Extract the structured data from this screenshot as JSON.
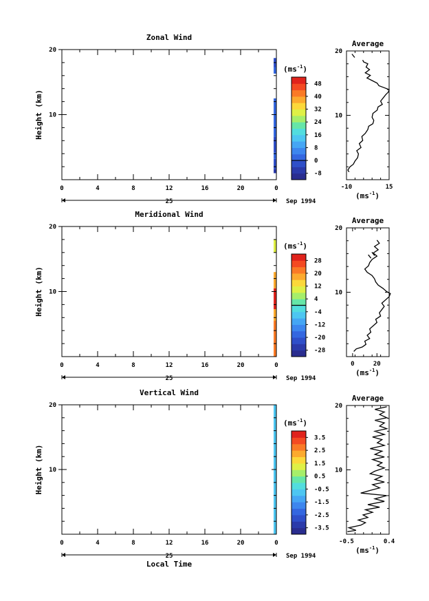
{
  "chart_data": [
    {
      "type": "heatmap",
      "title": "Zonal Wind",
      "ylabel": "Height (km)",
      "ylim": [
        0,
        20
      ],
      "yticks": [
        10,
        20
      ],
      "xlim": [
        0,
        24
      ],
      "xticks": [
        "0",
        "4",
        "8",
        "12",
        "16",
        "20",
        "0"
      ],
      "date_day": "25",
      "date_label": "Sep 1994",
      "colorbar": {
        "unit": "(ms",
        "unit_sup": "-1",
        "unit_close": ")",
        "tick_labels": [
          "-8",
          "0",
          "8",
          "16",
          "24",
          "32",
          "40",
          "48"
        ],
        "range": [
          -12,
          52
        ],
        "zero_line": 0
      },
      "data_column": {
        "x": 24,
        "segments": [
          {
            "y0": 1,
            "y1": 1.6,
            "value": -6
          },
          {
            "y0": 1.6,
            "y1": 3.2,
            "value": -4
          },
          {
            "y0": 3.2,
            "y1": 4.2,
            "value": 2
          },
          {
            "y0": 4.2,
            "y1": 6.6,
            "value": -2
          },
          {
            "y0": 6.6,
            "y1": 12.5,
            "value": 0
          },
          {
            "y0": 16.3,
            "y1": 17.3,
            "value": 2
          },
          {
            "y0": 17.3,
            "y1": 18.0,
            "value": -4
          },
          {
            "y0": 18.0,
            "y1": 18.7,
            "value": -2
          }
        ]
      },
      "profile": {
        "title": "Average",
        "xlim": [
          -10,
          15
        ],
        "xtick_labels": [
          "-10",
          "15"
        ],
        "xlabel": "(ms",
        "xlabel_sup": "-1",
        "xlabel_close": ")",
        "yticks": [
          10,
          20
        ],
        "points": [
          [
            -8.5,
            1.2
          ],
          [
            -9.2,
            1.5
          ],
          [
            -8,
            2
          ],
          [
            -6,
            2.4
          ],
          [
            -5,
            2.9
          ],
          [
            -3.5,
            3.4
          ],
          [
            -3,
            4
          ],
          [
            -4,
            4.5
          ],
          [
            -1.5,
            5
          ],
          [
            -2.5,
            5.6
          ],
          [
            -0.5,
            6.1
          ],
          [
            -1,
            6.7
          ],
          [
            1,
            7.2
          ],
          [
            2.5,
            7.8
          ],
          [
            3,
            8.3
          ],
          [
            5.5,
            8.7
          ],
          [
            6,
            9.2
          ],
          [
            5,
            9.7
          ],
          [
            5.5,
            10.3
          ],
          [
            8,
            10.8
          ],
          [
            8.5,
            11.3
          ],
          [
            11,
            11.7
          ],
          [
            10,
            12.2
          ],
          [
            11.5,
            12.7
          ],
          [
            13,
            13.2
          ],
          [
            14.5,
            13.6
          ],
          [
            15,
            14
          ],
          [
            12,
            14.3
          ],
          [
            9,
            14.6
          ],
          [
            8,
            15
          ],
          [
            5,
            15.4
          ],
          [
            2,
            15.8
          ],
          [
            4,
            16.2
          ],
          [
            1,
            16.6
          ],
          [
            3.5,
            17.1
          ],
          [
            1.5,
            17.5
          ],
          [
            2.5,
            18
          ],
          [
            0,
            18.3
          ],
          [
            -0.5,
            18.6
          ]
        ],
        "marker_points": [
          [
            -6,
            19.2
          ]
        ]
      }
    },
    {
      "type": "heatmap",
      "title": "Meridional Wind",
      "ylabel": "Height (km)",
      "ylim": [
        0,
        20
      ],
      "yticks": [
        10,
        20
      ],
      "xlim": [
        0,
        24
      ],
      "xticks": [
        "0",
        "4",
        "8",
        "12",
        "16",
        "20",
        "0"
      ],
      "date_day": "25",
      "date_label": "Sep 1994",
      "colorbar": {
        "unit": "(ms",
        "unit_sup": "-1",
        "unit_close": ")",
        "tick_labels": [
          "-28",
          "-20",
          "-12",
          "-4",
          "4",
          "12",
          "20",
          "28"
        ],
        "range": [
          -32,
          32
        ],
        "zero_line": 0
      },
      "data_column": {
        "x": 24,
        "segments": [
          {
            "y0": 0,
            "y1": 5.5,
            "value": 22
          },
          {
            "y0": 5.5,
            "y1": 7.3,
            "value": 18
          },
          {
            "y0": 7.3,
            "y1": 10.5,
            "value": 28
          },
          {
            "y0": 10.5,
            "y1": 13.0,
            "value": 16
          },
          {
            "y0": 16.0,
            "y1": 18.0,
            "value": 10
          }
        ]
      },
      "profile": {
        "title": "Average",
        "xlim": [
          -5,
          30
        ],
        "xtick_labels": [
          "0",
          "20"
        ],
        "xtick_values": [
          0,
          20
        ],
        "xlabel": "(ms",
        "xlabel_sup": "-1",
        "xlabel_close": ")",
        "yticks": [
          10,
          20
        ],
        "points": [
          [
            1,
            0.8
          ],
          [
            3,
            1.2
          ],
          [
            8,
            1.5
          ],
          [
            11,
            1.9
          ],
          [
            10,
            2.4
          ],
          [
            14,
            2.8
          ],
          [
            12,
            3.3
          ],
          [
            15,
            3.8
          ],
          [
            14,
            4.3
          ],
          [
            17,
            4.8
          ],
          [
            20,
            5.3
          ],
          [
            19,
            5.8
          ],
          [
            23,
            6.3
          ],
          [
            22,
            6.8
          ],
          [
            24,
            7.3
          ],
          [
            26,
            7.8
          ],
          [
            24,
            8.3
          ],
          [
            27,
            8.8
          ],
          [
            30,
            9.3
          ],
          [
            31,
            9.8
          ],
          [
            28,
            10.1
          ],
          [
            25,
            10.6
          ],
          [
            21,
            11.1
          ],
          [
            19,
            11.6
          ],
          [
            18,
            12.1
          ],
          [
            16,
            12.6
          ],
          [
            12,
            13.1
          ],
          [
            10,
            13.6
          ],
          [
            13,
            14.1
          ],
          [
            14,
            14.6
          ],
          [
            16,
            15.1
          ],
          [
            20,
            15.6
          ],
          [
            17,
            16.1
          ],
          [
            21,
            16.6
          ],
          [
            18,
            17.1
          ],
          [
            22,
            17.6
          ],
          [
            20,
            18.1
          ]
        ],
        "marker_points": [
          [
            14,
            15.5
          ],
          [
            17,
            15.9
          ]
        ]
      }
    },
    {
      "type": "heatmap",
      "title": "Vertical Wind",
      "ylabel": "Height (km)",
      "ylim": [
        0,
        20
      ],
      "yticks": [
        10,
        20
      ],
      "xlim": [
        0,
        24
      ],
      "xticks": [
        "0",
        "4",
        "8",
        "12",
        "16",
        "20",
        "0"
      ],
      "xlabel": "Local Time",
      "date_day": "25",
      "date_label": "Sep 1994",
      "colorbar": {
        "unit": "(ms",
        "unit_sup": "-1",
        "unit_close": ")",
        "tick_labels": [
          "-3.5",
          "-2.5",
          "-1.5",
          "-0.5",
          "0.5",
          "1.5",
          "2.5",
          "3.5"
        ],
        "range": [
          -4,
          4
        ],
        "zero_line": null
      },
      "data_column": {
        "x": 24,
        "segments": [
          {
            "y0": 0,
            "y1": 20,
            "value": -0.8
          }
        ]
      },
      "profile": {
        "title": "Average",
        "xlim": [
          -0.5,
          0.4
        ],
        "xtick_labels": [
          "-0.5",
          "0.4"
        ],
        "xtick_values": [
          -0.5,
          0.4
        ],
        "xlabel": "(ms",
        "xlabel_sup": "-1",
        "xlabel_close": ")",
        "yticks": [
          10,
          20
        ],
        "points": [
          [
            -0.48,
            0.4
          ],
          [
            -0.3,
            0.6
          ],
          [
            -0.45,
            1.0
          ],
          [
            -0.2,
            1.4
          ],
          [
            -0.1,
            1.8
          ],
          [
            -0.25,
            2.2
          ],
          [
            -0.05,
            2.6
          ],
          [
            -0.15,
            3.0
          ],
          [
            0.05,
            3.4
          ],
          [
            -0.1,
            3.8
          ],
          [
            0.2,
            4.2
          ],
          [
            -0.05,
            4.6
          ],
          [
            0.3,
            5.1
          ],
          [
            0.1,
            5.5
          ],
          [
            0.35,
            6.0
          ],
          [
            -0.2,
            6.4
          ],
          [
            0.0,
            6.8
          ],
          [
            0.2,
            7.2
          ],
          [
            0.05,
            7.7
          ],
          [
            0.3,
            8.1
          ],
          [
            0.1,
            8.5
          ],
          [
            0.25,
            9.0
          ],
          [
            0.0,
            9.4
          ],
          [
            0.1,
            9.8
          ],
          [
            0.3,
            10.3
          ],
          [
            0.15,
            10.7
          ],
          [
            0.25,
            11.1
          ],
          [
            0.05,
            11.6
          ],
          [
            0.3,
            12.0
          ],
          [
            0.1,
            12.4
          ],
          [
            0.25,
            12.9
          ],
          [
            0.0,
            13.3
          ],
          [
            0.3,
            13.8
          ],
          [
            0.15,
            14.2
          ],
          [
            0.25,
            14.7
          ],
          [
            0.05,
            15.1
          ],
          [
            0.3,
            15.5
          ],
          [
            0.1,
            16.0
          ],
          [
            0.35,
            16.4
          ],
          [
            0.2,
            16.8
          ],
          [
            0.3,
            17.3
          ],
          [
            0.1,
            17.7
          ],
          [
            0.35,
            18.1
          ],
          [
            0.2,
            18.6
          ],
          [
            0.3,
            19.0
          ],
          [
            0.1,
            19.4
          ],
          [
            0.35,
            19.8
          ]
        ],
        "marker_points": []
      }
    }
  ]
}
